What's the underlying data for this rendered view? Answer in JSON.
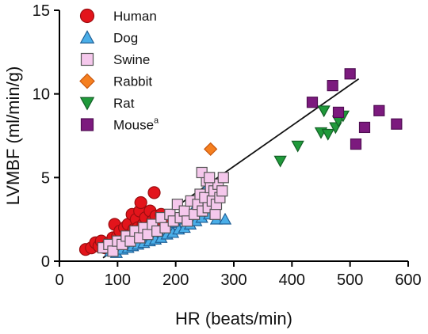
{
  "chart_data": {
    "type": "scatter",
    "xlabel": "HR (beats/min)",
    "ylabel": "LVMBF (ml/min/g)",
    "xlim": [
      0,
      600
    ],
    "ylim": [
      0,
      15
    ],
    "xticks": [
      0,
      100,
      200,
      300,
      400,
      500,
      600
    ],
    "yticks": [
      0,
      5,
      10,
      15
    ],
    "grid": false,
    "legend_position": "top-left",
    "series": [
      {
        "name": "Human",
        "marker": "circle",
        "color": "#e3141b",
        "stroke": "#9a0d10",
        "points": [
          [
            45,
            0.7
          ],
          [
            55,
            0.8
          ],
          [
            62,
            1.1
          ],
          [
            68,
            0.9
          ],
          [
            72,
            1.2
          ],
          [
            78,
            0.8
          ],
          [
            85,
            1.1
          ],
          [
            92,
            1.4
          ],
          [
            95,
            2.2
          ],
          [
            100,
            1.5
          ],
          [
            104,
            1.8
          ],
          [
            108,
            1.2
          ],
          [
            112,
            2.0
          ],
          [
            118,
            2.2
          ],
          [
            122,
            1.6
          ],
          [
            125,
            2.8
          ],
          [
            128,
            1.9
          ],
          [
            132,
            2.5
          ],
          [
            135,
            2.0
          ],
          [
            138,
            3.0
          ],
          [
            140,
            3.5
          ],
          [
            144,
            2.2
          ],
          [
            148,
            2.6
          ],
          [
            152,
            2.0
          ],
          [
            156,
            3.0
          ],
          [
            160,
            2.4
          ],
          [
            163,
            4.1
          ],
          [
            166,
            2.7
          ],
          [
            170,
            2.2
          ],
          [
            175,
            2.8
          ],
          [
            180,
            2.5
          ]
        ]
      },
      {
        "name": "Dog",
        "marker": "triangle-up",
        "color": "#4aaee8",
        "stroke": "#1f5f95",
        "points": [
          [
            88,
            0.6
          ],
          [
            92,
            0.8
          ],
          [
            98,
            0.5
          ],
          [
            102,
            0.9
          ],
          [
            108,
            0.7
          ],
          [
            112,
            1.0
          ],
          [
            118,
            0.8
          ],
          [
            122,
            1.2
          ],
          [
            126,
            0.9
          ],
          [
            130,
            1.3
          ],
          [
            135,
            1.0
          ],
          [
            140,
            1.4
          ],
          [
            145,
            1.1
          ],
          [
            150,
            1.5
          ],
          [
            155,
            1.2
          ],
          [
            160,
            1.7
          ],
          [
            165,
            1.3
          ],
          [
            170,
            1.8
          ],
          [
            175,
            1.4
          ],
          [
            180,
            2.0
          ],
          [
            185,
            1.6
          ],
          [
            190,
            2.1
          ],
          [
            195,
            1.7
          ],
          [
            200,
            2.3
          ],
          [
            205,
            1.9
          ],
          [
            210,
            2.5
          ],
          [
            215,
            2.0
          ],
          [
            220,
            2.8
          ],
          [
            225,
            2.2
          ],
          [
            230,
            3.0
          ],
          [
            235,
            2.4
          ],
          [
            240,
            3.5
          ],
          [
            245,
            2.6
          ],
          [
            250,
            4.0
          ],
          [
            255,
            4.5
          ],
          [
            258,
            2.8
          ],
          [
            265,
            3.2
          ],
          [
            270,
            2.5
          ],
          [
            285,
            2.5
          ]
        ]
      },
      {
        "name": "Swine",
        "marker": "square",
        "color": "#f5c8ec",
        "stroke": "#555555",
        "points": [
          [
            75,
            0.8
          ],
          [
            85,
            1.0
          ],
          [
            92,
            0.6
          ],
          [
            100,
            1.2
          ],
          [
            108,
            1.0
          ],
          [
            115,
            1.5
          ],
          [
            122,
            1.2
          ],
          [
            130,
            1.8
          ],
          [
            138,
            1.4
          ],
          [
            145,
            2.0
          ],
          [
            152,
            1.6
          ],
          [
            160,
            2.2
          ],
          [
            168,
            1.8
          ],
          [
            175,
            2.6
          ],
          [
            182,
            2.0
          ],
          [
            190,
            2.8
          ],
          [
            196,
            2.4
          ],
          [
            203,
            3.4
          ],
          [
            208,
            2.6
          ],
          [
            215,
            3.0
          ],
          [
            220,
            2.4
          ],
          [
            226,
            3.6
          ],
          [
            232,
            2.8
          ],
          [
            238,
            3.4
          ],
          [
            242,
            4.0
          ],
          [
            246,
            3.0
          ],
          [
            250,
            3.8
          ],
          [
            253,
            4.8
          ],
          [
            256,
            3.2
          ],
          [
            260,
            4.4
          ],
          [
            263,
            3.6
          ],
          [
            266,
            4.2
          ],
          [
            268,
            2.8
          ],
          [
            270,
            3.4
          ],
          [
            273,
            4.6
          ],
          [
            276,
            3.8
          ],
          [
            280,
            4.2
          ],
          [
            282,
            5.0
          ],
          [
            245,
            5.3
          ],
          [
            258,
            5.0
          ]
        ]
      },
      {
        "name": "Rabbit",
        "marker": "diamond",
        "color": "#f57f1f",
        "stroke": "#c8560c",
        "points": [
          [
            260,
            6.7
          ]
        ]
      },
      {
        "name": "Rat",
        "marker": "triangle-down",
        "color": "#1f9a3a",
        "stroke": "#136026",
        "points": [
          [
            380,
            6.0
          ],
          [
            410,
            6.9
          ],
          [
            450,
            7.7
          ],
          [
            455,
            9.0
          ],
          [
            462,
            7.6
          ],
          [
            475,
            8.0
          ],
          [
            480,
            8.4
          ],
          [
            488,
            8.7
          ]
        ]
      },
      {
        "name": "Mouse",
        "name_superscript": "a",
        "marker": "square",
        "color": "#7c1a7e",
        "stroke": "#4f0e52",
        "points": [
          [
            435,
            9.5
          ],
          [
            470,
            10.5
          ],
          [
            480,
            8.9
          ],
          [
            500,
            11.2
          ],
          [
            510,
            7.0
          ],
          [
            525,
            8.0
          ],
          [
            550,
            9.0
          ],
          [
            580,
            8.2
          ]
        ]
      }
    ],
    "regression_line": {
      "x": [
        75,
        515
      ],
      "y": [
        0.2,
        10.9
      ],
      "color": "#111111"
    }
  }
}
